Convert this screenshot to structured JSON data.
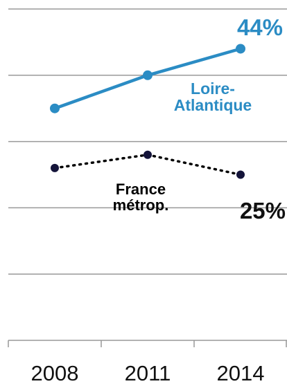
{
  "chart_data": {
    "type": "line",
    "categories": [
      "2008",
      "2011",
      "2014"
    ],
    "series": [
      {
        "name": "Loire-Atlantique",
        "color": "#2b8cc4",
        "values": [
          35,
          40,
          44
        ],
        "value_labels": [
          null,
          null,
          "44%"
        ]
      },
      {
        "name": "France métrop.",
        "color": "#000000",
        "values": [
          26,
          28,
          25
        ],
        "value_labels": [
          null,
          null,
          "25%"
        ]
      }
    ],
    "ylim": [
      0,
      50
    ],
    "yticks": [
      10,
      20,
      30,
      40,
      50
    ],
    "grid": true
  }
}
